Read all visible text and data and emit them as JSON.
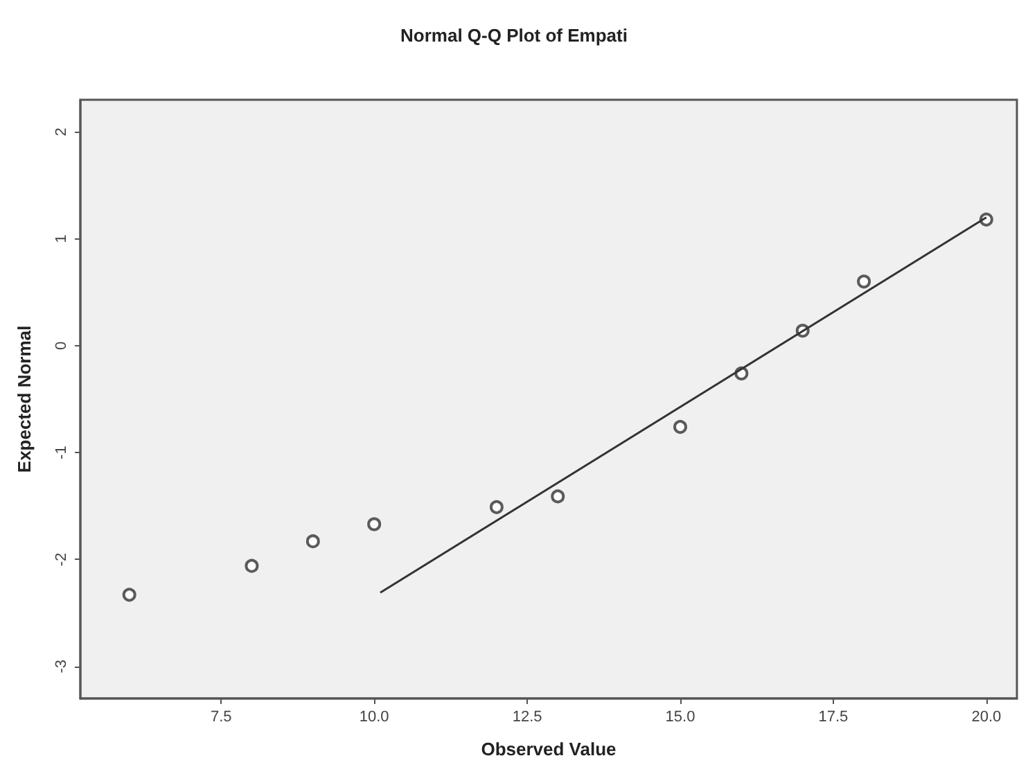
{
  "chart_data": {
    "type": "scatter",
    "title": "Normal Q-Q Plot of Empati",
    "xlabel": "Observed Value",
    "ylabel": "Expected Normal",
    "xlim": [
      5.2,
      20.5
    ],
    "xticks": [
      {
        "value": 7.5,
        "label": "7.5"
      },
      {
        "value": 10,
        "label": "10.0"
      },
      {
        "value": 12.5,
        "label": "12.5"
      },
      {
        "value": 15,
        "label": "15.0"
      },
      {
        "value": 17.5,
        "label": "17.5"
      },
      {
        "value": 20,
        "label": "20.0"
      }
    ],
    "ylim": [
      -3.3,
      2.3
    ],
    "yticks": [
      -3,
      -2,
      -1,
      0,
      1,
      2
    ],
    "grid": false,
    "marker": "circle",
    "series": [
      {
        "color": "#333333",
        "x": [
          6,
          8,
          9,
          10,
          12,
          13,
          15,
          16,
          17,
          18,
          20
        ],
        "values": [
          -2.33,
          -2.06,
          -1.83,
          -1.67,
          -1.51,
          -1.41,
          -0.76,
          -0.26,
          0.14,
          0.6,
          1.18
        ]
      },
      {
        "type": "line",
        "color": "#333333",
        "marker": "none",
        "line_style": "solid",
        "x": [
          10.1,
          20
        ],
        "values": [
          -2.31,
          1.2
        ]
      }
    ]
  }
}
